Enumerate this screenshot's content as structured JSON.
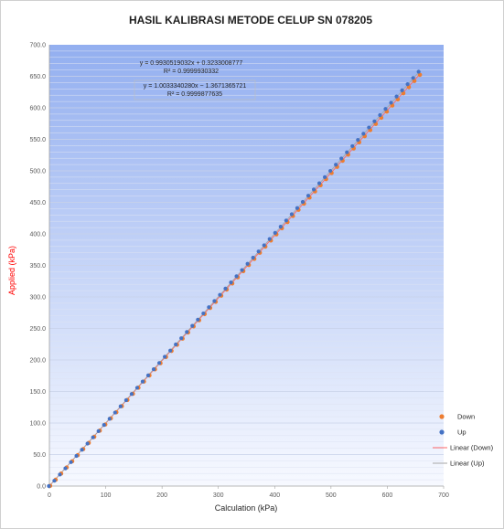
{
  "chart_data": {
    "type": "scatter",
    "title": "HASIL KALIBRASI METODE CELUP SN 078205",
    "xlabel": "Calculation (kPa)",
    "ylabel": "Applied (kPa)",
    "xlim": [
      0,
      700
    ],
    "ylim": [
      0,
      700
    ],
    "x_ticks": [
      "0",
      "100",
      "200",
      "300",
      "400",
      "500",
      "600",
      "700"
    ],
    "y_ticks": [
      "0.0",
      "50.0",
      "100.0",
      "150.0",
      "200.0",
      "250.0",
      "300.0",
      "350.0",
      "400.0",
      "450.0",
      "500.0",
      "550.0",
      "600.0",
      "650.0",
      "700.0"
    ],
    "grid": true,
    "legend_position": "right",
    "series": [
      {
        "name": "Down",
        "kind": "points",
        "color": "#ed7d31",
        "slope": 0.993,
        "intercept": 0.32,
        "x_start": 0,
        "x_step": 9.8,
        "count": 68
      },
      {
        "name": "Up",
        "kind": "points",
        "color": "#4472c4",
        "slope": 1.003,
        "intercept": -1.37,
        "x_start": 0,
        "x_step": 9.8,
        "count": 68
      },
      {
        "name": "Linear (Down)",
        "kind": "trendline",
        "color": "#ff6666"
      },
      {
        "name": "Linear (Up)",
        "kind": "trendline",
        "color": "#a6a6a6"
      }
    ],
    "equations": [
      {
        "eq": "y = 0.9930519032x + 0.3233008777",
        "r2": "R² = 0.9999930332"
      },
      {
        "eq": "y = 1.0033340280x − 1.3671365721",
        "r2": "R² = 0.9999877635"
      }
    ]
  }
}
